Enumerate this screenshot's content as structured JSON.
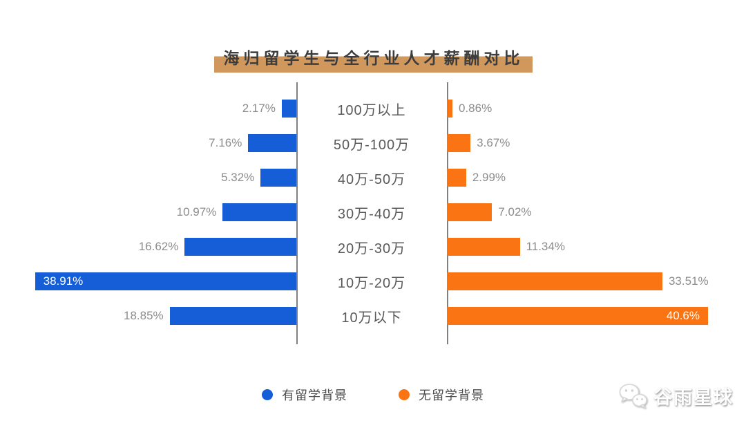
{
  "title": "海归留学生与全行业人才薪酬对比",
  "watermark": {
    "text": "谷雨星球",
    "icon": "wechat-icon"
  },
  "legend": [
    {
      "label": "有留学背景",
      "color": "#165dd8"
    },
    {
      "label": "无留学背景",
      "color": "#fa7414"
    }
  ],
  "colors": {
    "blue_series": "#165dd8",
    "orange_series": "#fa7414",
    "axis": "#808080",
    "value_label": "#8c8c8c",
    "category_label": "#595959",
    "title_highlight": "#d0985c"
  },
  "chart_data": {
    "type": "bar",
    "orientation": "diverging-horizontal",
    "title": "海归留学生与全行业人才薪酬对比",
    "categories": [
      "100万以上",
      "50万-100万",
      "40万-50万",
      "30万-40万",
      "20万-30万",
      "10万-20万",
      "10万以下"
    ],
    "series": [
      {
        "name": "有留学背景",
        "side": "left",
        "color": "#165dd8",
        "values": [
          2.17,
          7.16,
          5.32,
          10.97,
          16.62,
          38.91,
          18.85
        ],
        "value_labels": [
          "2.17%",
          "7.16%",
          "5.32%",
          "10.97%",
          "16.62%",
          "38.91%",
          "18.85%"
        ]
      },
      {
        "name": "无留学背景",
        "side": "right",
        "color": "#fa7414",
        "values": [
          0.86,
          3.67,
          2.99,
          7.02,
          11.34,
          33.51,
          40.6
        ],
        "value_labels": [
          "0.86%",
          "3.67%",
          "2.99%",
          "7.02%",
          "11.34%",
          "33.51%",
          "40.6%"
        ]
      }
    ],
    "value_suffix": "%",
    "xlim_left": [
      0,
      40
    ],
    "xlim_right": [
      0,
      42
    ],
    "grid": false,
    "legend_position": "bottom"
  }
}
